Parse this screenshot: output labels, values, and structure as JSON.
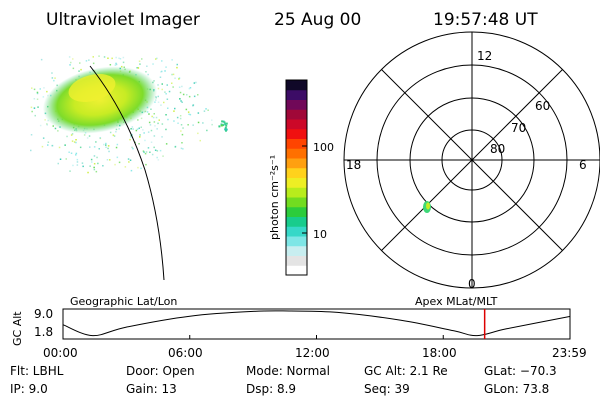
{
  "header": {
    "title": "Ultraviolet Imager",
    "date": "25 Aug 00",
    "time": "19:57:48 UT"
  },
  "colorbar": {
    "label": "photon cm⁻²s⁻¹",
    "tick_100": "100",
    "tick_10": "10",
    "colors_bottom_to_top": [
      "#ffffff",
      "#e4e4e4",
      "#c8eef0",
      "#7ee6e6",
      "#36d8c8",
      "#18cc8c",
      "#2ccc3c",
      "#72dc20",
      "#b8ec1c",
      "#eeee24",
      "#ffd21c",
      "#ffa010",
      "#ff7000",
      "#ff4400",
      "#f01010",
      "#cc0828",
      "#a00838",
      "#700858",
      "#3c0c66",
      "#100828"
    ]
  },
  "polar_plot": {
    "noon_label": "12",
    "midnight_label": "0",
    "dusk_label": "18",
    "dawn_label": "6",
    "lat_60": "60",
    "lat_70": "70",
    "lat_80": "80"
  },
  "frame_labels": {
    "geographic": "Geographic Lat/Lon",
    "apex": "Apex MLat/MLT"
  },
  "timeline": {
    "y_label": "GC Alt",
    "y_max": "9.0",
    "y_min": "1.8",
    "times": [
      "00:00",
      "06:00",
      "12:00",
      "18:00",
      "23:59"
    ],
    "orbit_altitude_re": [
      {
        "time_h": 0.0,
        "alt": 5.0
      },
      {
        "time_h": 1.4,
        "alt": 1.8
      },
      {
        "time_h": 3.0,
        "alt": 4.3
      },
      {
        "time_h": 6.0,
        "alt": 7.5
      },
      {
        "time_h": 9.0,
        "alt": 8.9
      },
      {
        "time_h": 10.8,
        "alt": 9.0
      },
      {
        "time_h": 13.0,
        "alt": 8.6
      },
      {
        "time_h": 16.0,
        "alt": 6.3
      },
      {
        "time_h": 18.5,
        "alt": 3.2
      },
      {
        "time_h": 19.6,
        "alt": 1.8
      },
      {
        "time_h": 21.0,
        "alt": 3.8
      },
      {
        "time_h": 23.98,
        "alt": 7.4
      }
    ],
    "current_time_h": 19.96,
    "marker_color": "#dd0000"
  },
  "info": {
    "row1": {
      "flt": "Flt: LBHL",
      "door": "Door: Open",
      "mode": "Mode: Normal",
      "gcalt": "GC Alt: 2.1 Re",
      "glat": "GLat: −70.3"
    },
    "row2": {
      "ip": "IP:  9.0",
      "gain": "Gain: 13",
      "dsp": "Dsp:     8.9",
      "seq": "Seq: 39",
      "glon": "GLon:  73.8"
    }
  }
}
